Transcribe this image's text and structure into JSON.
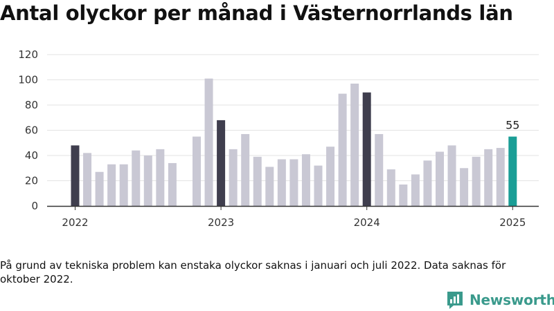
{
  "header": {
    "title": "Antal olyckor per månad i Västernorrlands län"
  },
  "footer": {
    "note": "På grund av tekniska problem kan enstaka olyckor saknas i januari och juli 2022. Data saknas för oktober 2022.",
    "brand": "Newsworthy"
  },
  "colors": {
    "bar": "#c9c8d4",
    "january": "#3f3e4e",
    "latest": "#1a9e96",
    "grid": "#e3e3e3",
    "axis": "#333333"
  },
  "chart_data": {
    "type": "bar",
    "title": "Antal olyckor per månad i Västernorrlands län",
    "xlabel": "",
    "ylabel": "",
    "ylim": [
      0,
      120
    ],
    "y_ticks": [
      0,
      20,
      40,
      60,
      80,
      100,
      120
    ],
    "x_tick_labels": [
      {
        "label": "2022",
        "month_index": 0
      },
      {
        "label": "2023",
        "month_index": 12
      },
      {
        "label": "2024",
        "month_index": 24
      },
      {
        "label": "2025",
        "month_index": 36
      }
    ],
    "grid": true,
    "highlight_label": {
      "month_index": 36,
      "text": "55"
    },
    "categories": [
      "2022-01",
      "2022-02",
      "2022-03",
      "2022-04",
      "2022-05",
      "2022-06",
      "2022-07",
      "2022-08",
      "2022-09",
      "2022-10",
      "2022-11",
      "2022-12",
      "2023-01",
      "2023-02",
      "2023-03",
      "2023-04",
      "2023-05",
      "2023-06",
      "2023-07",
      "2023-08",
      "2023-09",
      "2023-10",
      "2023-11",
      "2023-12",
      "2024-01",
      "2024-02",
      "2024-03",
      "2024-04",
      "2024-05",
      "2024-06",
      "2024-07",
      "2024-08",
      "2024-09",
      "2024-10",
      "2024-11",
      "2024-12",
      "2025-01"
    ],
    "values": [
      48,
      42,
      27,
      33,
      33,
      44,
      40,
      45,
      34,
      null,
      55,
      101,
      68,
      45,
      57,
      39,
      31,
      37,
      37,
      41,
      32,
      47,
      89,
      97,
      90,
      57,
      29,
      17,
      25,
      36,
      43,
      48,
      30,
      39,
      45,
      46,
      55
    ]
  }
}
